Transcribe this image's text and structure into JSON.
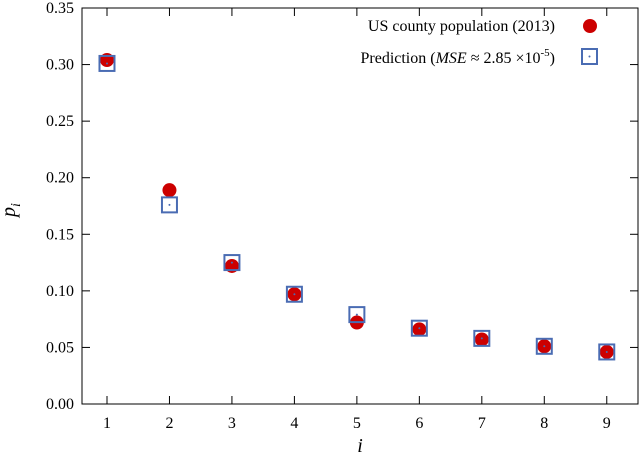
{
  "chart_data": {
    "type": "scatter",
    "title": "",
    "xlabel": "i",
    "ylabel_main": "p",
    "ylabel_sub": "i",
    "xlim": [
      0.6,
      9.5
    ],
    "ylim": [
      0,
      0.35
    ],
    "x_ticks": [
      "1",
      "2",
      "3",
      "4",
      "5",
      "6",
      "7",
      "8",
      "9"
    ],
    "x_tick_values": [
      1,
      2,
      3,
      4,
      5,
      6,
      7,
      8,
      9
    ],
    "y_ticks": [
      "0.00",
      "0.05",
      "0.10",
      "0.15",
      "0.20",
      "0.25",
      "0.30",
      "0.35"
    ],
    "y_tick_values": [
      0,
      0.05,
      0.1,
      0.15,
      0.2,
      0.25,
      0.3,
      0.35
    ],
    "legend_position": "top-right",
    "series": [
      {
        "name": "US county population (2013)",
        "marker": "filled-circle",
        "color": "#cc0000",
        "x": [
          1,
          2,
          3,
          4,
          5,
          6,
          7,
          8,
          9
        ],
        "values": [
          0.304,
          0.189,
          0.122,
          0.097,
          0.072,
          0.066,
          0.057,
          0.051,
          0.046
        ]
      },
      {
        "name": "Prediction",
        "legend_text_prefix": "Prediction (",
        "legend_text_mse": "MSE",
        "legend_text_approx": " ≈ 2.85 ×10",
        "legend_text_exp": "-5",
        "legend_text_suffix": ")",
        "marker": "open-square-dot",
        "color": "#4a6cb3",
        "x": [
          1,
          2,
          3,
          4,
          5,
          6,
          7,
          8,
          9
        ],
        "values": [
          0.301,
          0.176,
          0.125,
          0.097,
          0.079,
          0.067,
          0.058,
          0.051,
          0.046
        ]
      }
    ]
  }
}
